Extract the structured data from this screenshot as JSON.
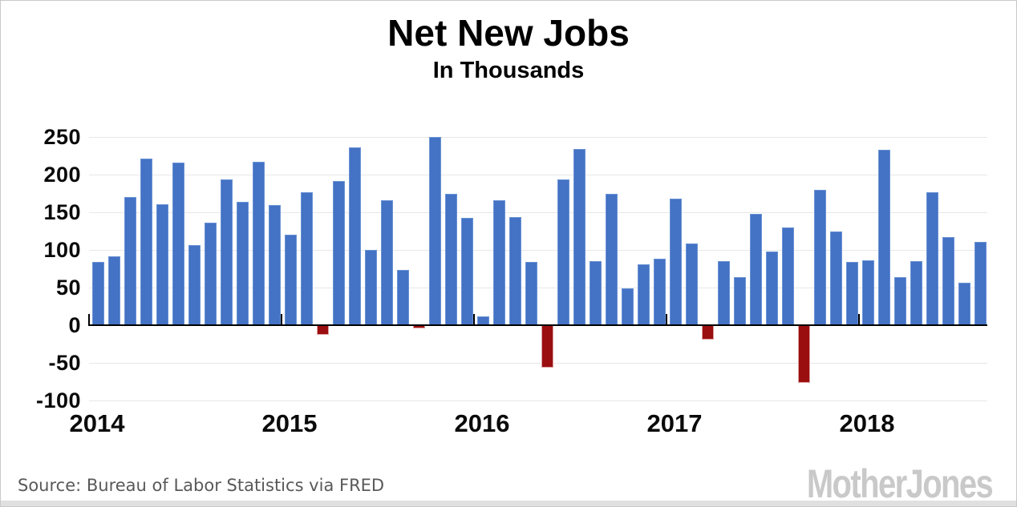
{
  "title": "Net New Jobs",
  "subtitle": "In Thousands",
  "footer": {
    "source": "Source: Bureau of Labor Statistics via FRED",
    "logo": "MotherJones"
  },
  "colors": {
    "bar_positive": "#4472C4",
    "bar_negative": "#9B0E10",
    "gridline": "#E7E7E7",
    "axis": "#000000",
    "source_text": "#595959",
    "logo_gray": "#C9C9C9"
  },
  "chart_data": {
    "type": "bar",
    "title": "Net New Jobs",
    "subtitle": "In Thousands",
    "unit": "thousands of jobs",
    "cadence": "monthly",
    "ylim": [
      -100,
      250
    ],
    "yticks": [
      250,
      200,
      150,
      100,
      50,
      0,
      -50,
      -100
    ],
    "gridlines": [
      250,
      200,
      150,
      100,
      50,
      -50,
      -100
    ],
    "grid": true,
    "legend": "none",
    "bar_color_positive": "#4472C4",
    "bar_color_negative": "#9B0E10",
    "years": [
      {
        "year": "2014",
        "values": [
          84,
          91,
          170,
          221,
          161,
          216,
          106,
          136,
          194,
          164,
          217,
          160
        ]
      },
      {
        "year": "2015",
        "values": [
          120,
          177,
          -12,
          192,
          236,
          100,
          166,
          73,
          -3,
          250,
          174,
          143
        ]
      },
      {
        "year": "2016",
        "values": [
          12,
          166,
          144,
          84,
          -55,
          194,
          234,
          85,
          174,
          49,
          81,
          88
        ]
      },
      {
        "year": "2017",
        "values": [
          168,
          109,
          -18,
          85,
          64,
          148,
          98,
          130,
          -76,
          180,
          124,
          84
        ]
      },
      {
        "year": "2018",
        "values": [
          86,
          233,
          64,
          85,
          177,
          117,
          56,
          111
        ]
      }
    ]
  }
}
